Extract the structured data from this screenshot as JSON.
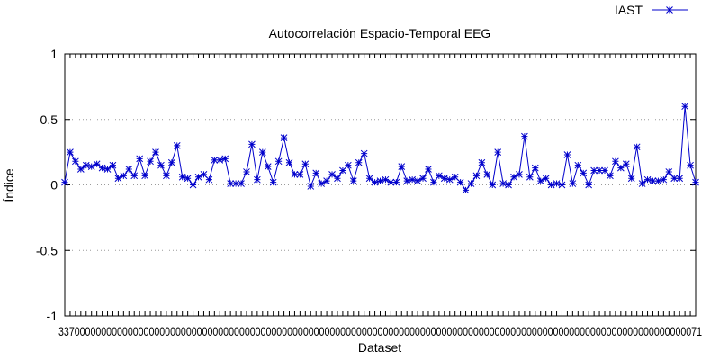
{
  "chart_data": {
    "type": "line",
    "title": "Autocorrelación Espacio-Temporal EEG",
    "xlabel": "Dataset",
    "ylabel": "Índice",
    "ylim": [
      -1,
      1
    ],
    "yticks": [
      "-1",
      "-0.5",
      "0",
      "0.5",
      "1"
    ],
    "grid": "horizontal-dotted",
    "legend_position": "top-right",
    "colors": {
      "series": "#0000cc",
      "axis": "#000000",
      "grid": "#9a9a9a"
    },
    "series": [
      {
        "name": "IAST",
        "values": [
          0.02,
          0.25,
          0.18,
          0.12,
          0.15,
          0.14,
          0.16,
          0.13,
          0.12,
          0.15,
          0.05,
          0.07,
          0.12,
          0.07,
          0.2,
          0.07,
          0.18,
          0.25,
          0.15,
          0.07,
          0.17,
          0.3,
          0.06,
          0.05,
          0.0,
          0.06,
          0.08,
          0.04,
          0.19,
          0.19,
          0.2,
          0.01,
          0.01,
          0.01,
          0.1,
          0.31,
          0.04,
          0.25,
          0.14,
          0.02,
          0.18,
          0.36,
          0.17,
          0.08,
          0.08,
          0.16,
          -0.01,
          0.09,
          0.01,
          0.03,
          0.08,
          0.05,
          0.11,
          0.15,
          0.03,
          0.17,
          0.24,
          0.05,
          0.02,
          0.03,
          0.04,
          0.02,
          0.02,
          0.14,
          0.03,
          0.04,
          0.03,
          0.05,
          0.12,
          0.02,
          0.07,
          0.05,
          0.04,
          0.06,
          0.02,
          -0.04,
          0.01,
          0.07,
          0.17,
          0.08,
          0.0,
          0.25,
          0.01,
          0.0,
          0.06,
          0.08,
          0.37,
          0.06,
          0.13,
          0.03,
          0.05,
          0.0,
          0.01,
          0.0,
          0.23,
          0.01,
          0.15,
          0.09,
          0.0,
          0.11,
          0.11,
          0.11,
          0.07,
          0.18,
          0.13,
          0.16,
          0.05,
          0.29,
          0.01,
          0.04,
          0.03,
          0.03,
          0.04,
          0.1,
          0.05,
          0.05,
          0.6,
          0.15,
          0.02
        ]
      }
    ],
    "xtick_labels_overlapping": "3370000000000000000000000000000000000000000000000000000000000000000000000000000000000000000000000000000000000000000000071"
  }
}
